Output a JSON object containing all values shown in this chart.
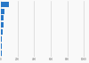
{
  "values": [
    100,
    42,
    36,
    28,
    20,
    16,
    13,
    8
  ],
  "bar_color": "#2878c8",
  "background_color": "#f9f9f9",
  "xlim": [
    0,
    1050
  ],
  "grid_color": "#cccccc",
  "bar_height": 0.75,
  "n_bars": 8
}
